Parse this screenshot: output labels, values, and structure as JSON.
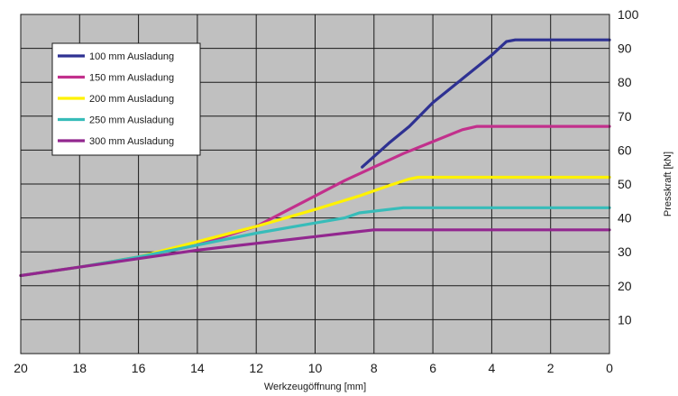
{
  "chart_data": {
    "type": "line",
    "title": "",
    "xlabel": "Werkzeugöffnung [mm]",
    "ylabel": "Presskraft [kN]",
    "xlim": [
      20,
      0
    ],
    "ylim": [
      0,
      100
    ],
    "x_ticks": [
      "20",
      "18",
      "16",
      "14",
      "12",
      "10",
      "8",
      "6",
      "4",
      "2",
      "0"
    ],
    "y_ticks": [
      "10",
      "20",
      "30",
      "40",
      "50",
      "60",
      "70",
      "80",
      "90",
      "100"
    ],
    "grid": true,
    "plot_background": "#c0c0c0",
    "legend_position": "top-left",
    "series": [
      {
        "name": "100 mm Ausladung",
        "color": "#2e3192",
        "points": [
          [
            8.4,
            55
          ],
          [
            7.5,
            62
          ],
          [
            6.8,
            67
          ],
          [
            6,
            74
          ],
          [
            5,
            81
          ],
          [
            4,
            88
          ],
          [
            3.5,
            92
          ],
          [
            3.2,
            92.5
          ],
          [
            0,
            92.5
          ]
        ]
      },
      {
        "name": "150 mm Ausladung",
        "color": "#c2308c",
        "points": [
          [
            20,
            23
          ],
          [
            18,
            25.5
          ],
          [
            16,
            28.5
          ],
          [
            14,
            32
          ],
          [
            12,
            37.5
          ],
          [
            11,
            42
          ],
          [
            10,
            46.5
          ],
          [
            9,
            51
          ],
          [
            8,
            55
          ],
          [
            7,
            59
          ],
          [
            6,
            62.5
          ],
          [
            5,
            66
          ],
          [
            4.5,
            67
          ],
          [
            0,
            67
          ]
        ]
      },
      {
        "name": "200 mm Ausladung",
        "color": "#fff200",
        "points": [
          [
            20,
            23
          ],
          [
            18,
            25.5
          ],
          [
            16,
            28.5
          ],
          [
            14,
            33
          ],
          [
            12,
            37.5
          ],
          [
            10,
            42.5
          ],
          [
            8.5,
            46.5
          ],
          [
            7.5,
            49.5
          ],
          [
            6.8,
            51.5
          ],
          [
            6.5,
            52
          ],
          [
            0,
            52
          ]
        ]
      },
      {
        "name": "250 mm Ausladung",
        "color": "#37bcb9",
        "points": [
          [
            20,
            23
          ],
          [
            18,
            25.5
          ],
          [
            16,
            28.5
          ],
          [
            14,
            32
          ],
          [
            12,
            35.5
          ],
          [
            10,
            38.5
          ],
          [
            9,
            40
          ],
          [
            8.5,
            41.5
          ],
          [
            7.5,
            42.5
          ],
          [
            7,
            43
          ],
          [
            0,
            43
          ]
        ]
      },
      {
        "name": "300 mm Ausladung",
        "color": "#92278f",
        "points": [
          [
            20,
            23
          ],
          [
            18,
            25.5
          ],
          [
            16,
            28
          ],
          [
            14,
            30.5
          ],
          [
            12,
            32.5
          ],
          [
            10,
            34.5
          ],
          [
            9,
            35.5
          ],
          [
            8,
            36.5
          ],
          [
            0,
            36.5
          ]
        ]
      }
    ]
  }
}
